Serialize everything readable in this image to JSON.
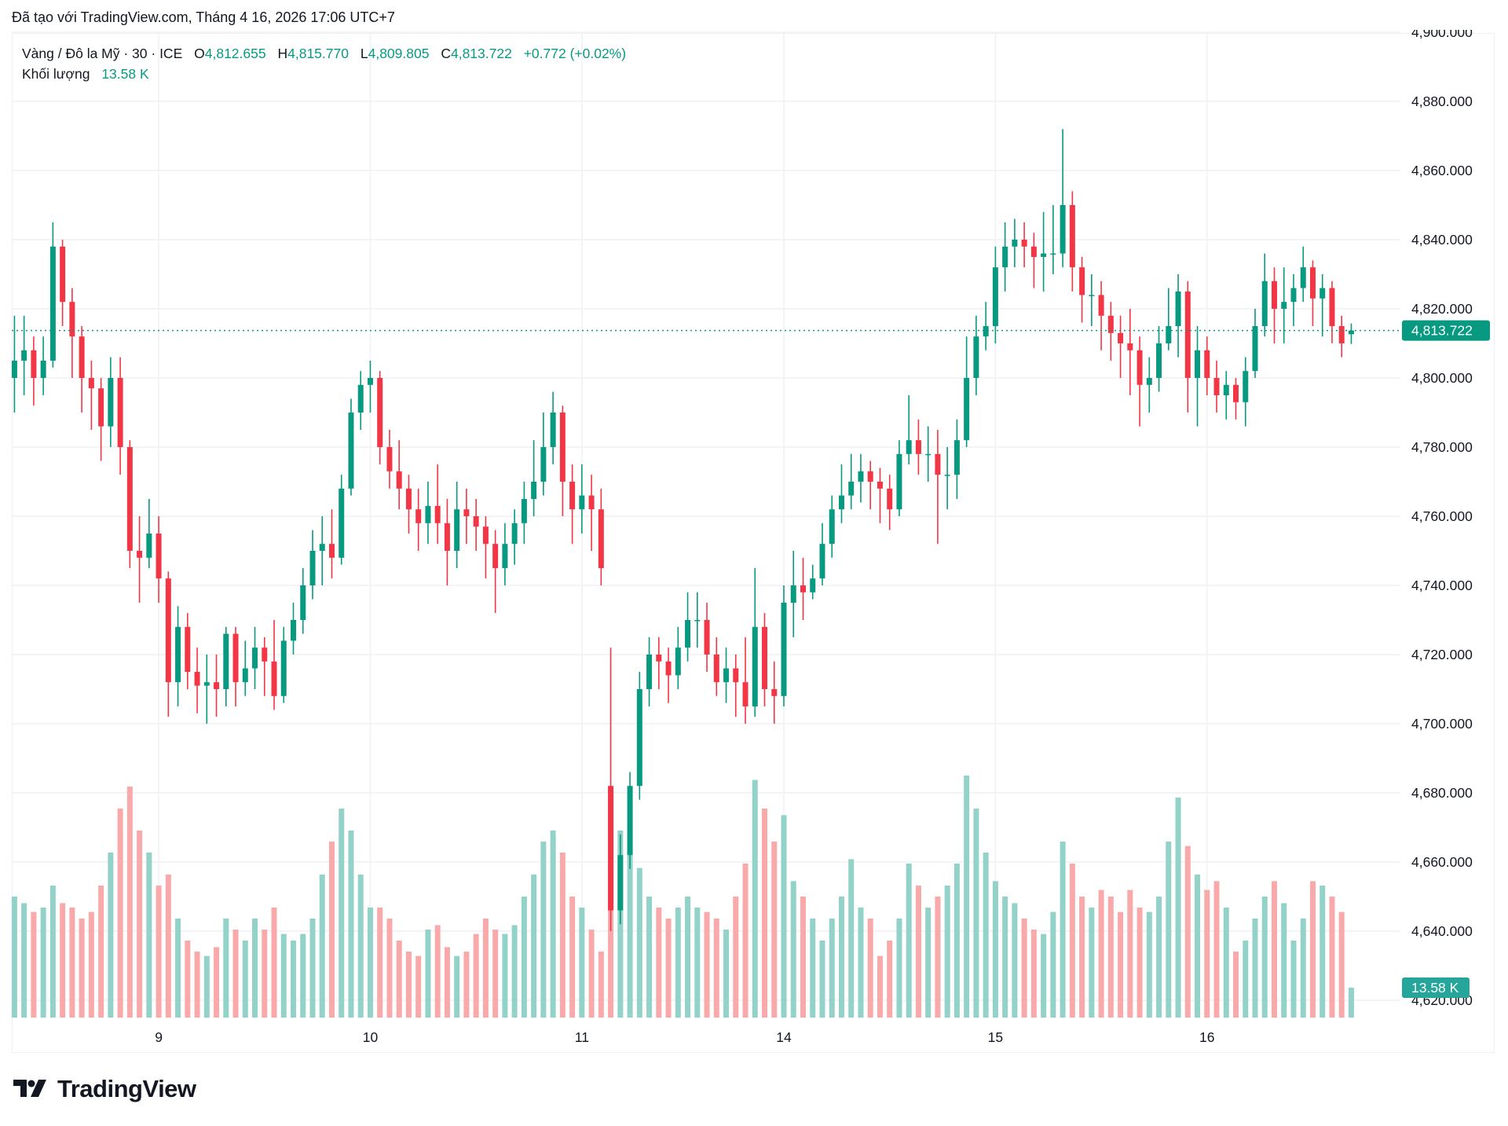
{
  "caption": "Đã tạo với TradingView.com, Tháng 4 16, 2026 17:06 UTC+7",
  "legend": {
    "symbol": "Vàng / Đô la Mỹ · 30 · ICE",
    "open_label": "O",
    "open": "4,812.655",
    "high_label": "H",
    "high": "4,815.770",
    "low_label": "L",
    "low": "4,809.805",
    "close_label": "C",
    "close": "4,813.722",
    "change": "+0.772 (+0.02%)",
    "volume_label": "Khối lượng",
    "volume": "13.58 K"
  },
  "colors": {
    "up": "#089981",
    "down": "#f23645",
    "up_volume": "#92d2c8",
    "down_volume": "#f9a9a9",
    "grid": "#f0f1f4"
  },
  "last_price_label": "4,813.722",
  "last_volume_label": "13.58 K",
  "logo_text": "TradingView",
  "chart_data": {
    "type": "candlestick",
    "title": "",
    "y_axis": {
      "min": 4620,
      "max": 4900,
      "step": 20,
      "tick_labels": [
        "4,900.000",
        "4,880.000",
        "4,860.000",
        "4,840.000",
        "4,820.000",
        "4,800.000",
        "4,780.000",
        "4,760.000",
        "4,740.000",
        "4,720.000",
        "4,700.000",
        "4,680.000",
        "4,660.000",
        "4,640.000",
        "4,620.000"
      ],
      "position": "right"
    },
    "x_tick_labels": [
      "9",
      "10",
      "11",
      "14",
      "15",
      "16"
    ],
    "grid": true,
    "last_price": 4813.722,
    "candles": [
      {
        "o": 4800,
        "h": 4818,
        "l": 4790,
        "c": 4805,
        "v": 55
      },
      {
        "o": 4805,
        "h": 4818,
        "l": 4795,
        "c": 4808,
        "v": 52
      },
      {
        "o": 4808,
        "h": 4812,
        "l": 4792,
        "c": 4800,
        "v": 48
      },
      {
        "o": 4800,
        "h": 4812,
        "l": 4795,
        "c": 4805,
        "v": 50
      },
      {
        "o": 4805,
        "h": 4845,
        "l": 4803,
        "c": 4838,
        "v": 60
      },
      {
        "o": 4838,
        "h": 4840,
        "l": 4815,
        "c": 4822,
        "v": 52
      },
      {
        "o": 4822,
        "h": 4826,
        "l": 4800,
        "c": 4812,
        "v": 50
      },
      {
        "o": 4812,
        "h": 4815,
        "l": 4790,
        "c": 4800,
        "v": 45
      },
      {
        "o": 4800,
        "h": 4805,
        "l": 4785,
        "c": 4797,
        "v": 48
      },
      {
        "o": 4797,
        "h": 4800,
        "l": 4776,
        "c": 4786,
        "v": 60
      },
      {
        "o": 4786,
        "h": 4806,
        "l": 4780,
        "c": 4800,
        "v": 75
      },
      {
        "o": 4800,
        "h": 4806,
        "l": 4772,
        "c": 4780,
        "v": 95
      },
      {
        "o": 4780,
        "h": 4782,
        "l": 4745,
        "c": 4750,
        "v": 105
      },
      {
        "o": 4750,
        "h": 4760,
        "l": 4735,
        "c": 4748,
        "v": 85
      },
      {
        "o": 4748,
        "h": 4765,
        "l": 4745,
        "c": 4755,
        "v": 75
      },
      {
        "o": 4755,
        "h": 4760,
        "l": 4735,
        "c": 4742,
        "v": 60,
        "t": "9"
      },
      {
        "o": 4742,
        "h": 4744,
        "l": 4702,
        "c": 4712,
        "v": 65
      },
      {
        "o": 4712,
        "h": 4734,
        "l": 4705,
        "c": 4728,
        "v": 45
      },
      {
        "o": 4728,
        "h": 4732,
        "l": 4710,
        "c": 4715,
        "v": 35
      },
      {
        "o": 4715,
        "h": 4722,
        "l": 4703,
        "c": 4711,
        "v": 30
      },
      {
        "o": 4711,
        "h": 4720,
        "l": 4700,
        "c": 4712,
        "v": 28
      },
      {
        "o": 4712,
        "h": 4720,
        "l": 4702,
        "c": 4710,
        "v": 32
      },
      {
        "o": 4710,
        "h": 4728,
        "l": 4705,
        "c": 4726,
        "v": 45
      },
      {
        "o": 4726,
        "h": 4728,
        "l": 4705,
        "c": 4712,
        "v": 40
      },
      {
        "o": 4712,
        "h": 4724,
        "l": 4708,
        "c": 4716,
        "v": 35
      },
      {
        "o": 4716,
        "h": 4728,
        "l": 4710,
        "c": 4722,
        "v": 45
      },
      {
        "o": 4722,
        "h": 4725,
        "l": 4708,
        "c": 4718,
        "v": 40
      },
      {
        "o": 4718,
        "h": 4730,
        "l": 4704,
        "c": 4708,
        "v": 50
      },
      {
        "o": 4708,
        "h": 4728,
        "l": 4706,
        "c": 4724,
        "v": 38
      },
      {
        "o": 4724,
        "h": 4735,
        "l": 4720,
        "c": 4730,
        "v": 35
      },
      {
        "o": 4730,
        "h": 4745,
        "l": 4726,
        "c": 4740,
        "v": 38
      },
      {
        "o": 4740,
        "h": 4756,
        "l": 4736,
        "c": 4750,
        "v": 45
      },
      {
        "o": 4750,
        "h": 4760,
        "l": 4740,
        "c": 4752,
        "v": 65
      },
      {
        "o": 4752,
        "h": 4762,
        "l": 4742,
        "c": 4748,
        "v": 80
      },
      {
        "o": 4748,
        "h": 4772,
        "l": 4746,
        "c": 4768,
        "v": 95
      },
      {
        "o": 4768,
        "h": 4794,
        "l": 4766,
        "c": 4790,
        "v": 85
      },
      {
        "o": 4790,
        "h": 4802,
        "l": 4785,
        "c": 4798,
        "v": 65
      },
      {
        "o": 4798,
        "h": 4805,
        "l": 4790,
        "c": 4800,
        "v": 50,
        "t": "10"
      },
      {
        "o": 4800,
        "h": 4802,
        "l": 4775,
        "c": 4780,
        "v": 50
      },
      {
        "o": 4780,
        "h": 4785,
        "l": 4768,
        "c": 4773,
        "v": 45
      },
      {
        "o": 4773,
        "h": 4782,
        "l": 4762,
        "c": 4768,
        "v": 35
      },
      {
        "o": 4768,
        "h": 4772,
        "l": 4755,
        "c": 4762,
        "v": 30
      },
      {
        "o": 4762,
        "h": 4768,
        "l": 4750,
        "c": 4758,
        "v": 28
      },
      {
        "o": 4758,
        "h": 4770,
        "l": 4752,
        "c": 4763,
        "v": 40
      },
      {
        "o": 4763,
        "h": 4775,
        "l": 4752,
        "c": 4758,
        "v": 42
      },
      {
        "o": 4758,
        "h": 4765,
        "l": 4740,
        "c": 4750,
        "v": 32
      },
      {
        "o": 4750,
        "h": 4770,
        "l": 4745,
        "c": 4762,
        "v": 28
      },
      {
        "o": 4762,
        "h": 4768,
        "l": 4752,
        "c": 4760,
        "v": 30
      },
      {
        "o": 4760,
        "h": 4765,
        "l": 4750,
        "c": 4757,
        "v": 38
      },
      {
        "o": 4757,
        "h": 4760,
        "l": 4742,
        "c": 4752,
        "v": 45
      },
      {
        "o": 4752,
        "h": 4756,
        "l": 4732,
        "c": 4745,
        "v": 40
      },
      {
        "o": 4745,
        "h": 4758,
        "l": 4740,
        "c": 4752,
        "v": 38
      },
      {
        "o": 4752,
        "h": 4762,
        "l": 4746,
        "c": 4758,
        "v": 42
      },
      {
        "o": 4758,
        "h": 4770,
        "l": 4752,
        "c": 4765,
        "v": 55
      },
      {
        "o": 4765,
        "h": 4782,
        "l": 4760,
        "c": 4770,
        "v": 65
      },
      {
        "o": 4770,
        "h": 4790,
        "l": 4766,
        "c": 4780,
        "v": 80
      },
      {
        "o": 4780,
        "h": 4796,
        "l": 4775,
        "c": 4790,
        "v": 85
      },
      {
        "o": 4790,
        "h": 4792,
        "l": 4760,
        "c": 4770,
        "v": 75
      },
      {
        "o": 4770,
        "h": 4775,
        "l": 4752,
        "c": 4762,
        "v": 55
      },
      {
        "o": 4762,
        "h": 4775,
        "l": 4755,
        "c": 4766,
        "v": 50,
        "t": "11"
      },
      {
        "o": 4766,
        "h": 4772,
        "l": 4750,
        "c": 4762,
        "v": 40
      },
      {
        "o": 4762,
        "h": 4768,
        "l": 4740,
        "c": 4745,
        "v": 30
      },
      {
        "o": 4682,
        "h": 4722,
        "l": 4640,
        "c": 4646,
        "v": 105
      },
      {
        "o": 4646,
        "h": 4668,
        "l": 4642,
        "c": 4662,
        "v": 85
      },
      {
        "o": 4662,
        "h": 4686,
        "l": 4658,
        "c": 4682,
        "v": 75
      },
      {
        "o": 4682,
        "h": 4715,
        "l": 4678,
        "c": 4710,
        "v": 68
      },
      {
        "o": 4710,
        "h": 4725,
        "l": 4705,
        "c": 4720,
        "v": 55
      },
      {
        "o": 4720,
        "h": 4725,
        "l": 4710,
        "c": 4718,
        "v": 50
      },
      {
        "o": 4718,
        "h": 4722,
        "l": 4706,
        "c": 4714,
        "v": 45
      },
      {
        "o": 4714,
        "h": 4728,
        "l": 4710,
        "c": 4722,
        "v": 50
      },
      {
        "o": 4722,
        "h": 4738,
        "l": 4718,
        "c": 4730,
        "v": 55
      },
      {
        "o": 4730,
        "h": 4738,
        "l": 4722,
        "c": 4730,
        "v": 50
      },
      {
        "o": 4730,
        "h": 4735,
        "l": 4715,
        "c": 4720,
        "v": 48
      },
      {
        "o": 4720,
        "h": 4725,
        "l": 4708,
        "c": 4712,
        "v": 45
      },
      {
        "o": 4712,
        "h": 4722,
        "l": 4706,
        "c": 4716,
        "v": 40
      },
      {
        "o": 4716,
        "h": 4720,
        "l": 4702,
        "c": 4712,
        "v": 55
      },
      {
        "o": 4712,
        "h": 4725,
        "l": 4700,
        "c": 4705,
        "v": 70
      },
      {
        "o": 4705,
        "h": 4745,
        "l": 4702,
        "c": 4728,
        "v": 108
      },
      {
        "o": 4728,
        "h": 4732,
        "l": 4705,
        "c": 4710,
        "v": 95
      },
      {
        "o": 4710,
        "h": 4718,
        "l": 4700,
        "c": 4708,
        "v": 80
      },
      {
        "o": 4708,
        "h": 4740,
        "l": 4705,
        "c": 4735,
        "v": 92,
        "t": "14"
      },
      {
        "o": 4735,
        "h": 4750,
        "l": 4725,
        "c": 4740,
        "v": 62
      },
      {
        "o": 4740,
        "h": 4748,
        "l": 4730,
        "c": 4738,
        "v": 55
      },
      {
        "o": 4738,
        "h": 4746,
        "l": 4736,
        "c": 4742,
        "v": 45
      },
      {
        "o": 4742,
        "h": 4758,
        "l": 4740,
        "c": 4752,
        "v": 35
      },
      {
        "o": 4752,
        "h": 4766,
        "l": 4748,
        "c": 4762,
        "v": 45
      },
      {
        "o": 4762,
        "h": 4775,
        "l": 4758,
        "c": 4766,
        "v": 55
      },
      {
        "o": 4766,
        "h": 4778,
        "l": 4762,
        "c": 4770,
        "v": 72
      },
      {
        "o": 4770,
        "h": 4778,
        "l": 4764,
        "c": 4773,
        "v": 50
      },
      {
        "o": 4773,
        "h": 4776,
        "l": 4762,
        "c": 4770,
        "v": 45
      },
      {
        "o": 4770,
        "h": 4774,
        "l": 4758,
        "c": 4768,
        "v": 28
      },
      {
        "o": 4768,
        "h": 4772,
        "l": 4756,
        "c": 4762,
        "v": 35
      },
      {
        "o": 4762,
        "h": 4782,
        "l": 4760,
        "c": 4778,
        "v": 45
      },
      {
        "o": 4778,
        "h": 4795,
        "l": 4775,
        "c": 4782,
        "v": 70
      },
      {
        "o": 4782,
        "h": 4788,
        "l": 4772,
        "c": 4778,
        "v": 60
      },
      {
        "o": 4778,
        "h": 4786,
        "l": 4770,
        "c": 4778,
        "v": 50
      },
      {
        "o": 4778,
        "h": 4785,
        "l": 4752,
        "c": 4772,
        "v": 55
      },
      {
        "o": 4772,
        "h": 4780,
        "l": 4762,
        "c": 4772,
        "v": 60
      },
      {
        "o": 4772,
        "h": 4788,
        "l": 4765,
        "c": 4782,
        "v": 70
      },
      {
        "o": 4782,
        "h": 4812,
        "l": 4780,
        "c": 4800,
        "v": 110
      },
      {
        "o": 4800,
        "h": 4818,
        "l": 4795,
        "c": 4812,
        "v": 95
      },
      {
        "o": 4812,
        "h": 4822,
        "l": 4808,
        "c": 4815,
        "v": 75
      },
      {
        "o": 4815,
        "h": 4838,
        "l": 4810,
        "c": 4832,
        "v": 62,
        "t": "15"
      },
      {
        "o": 4832,
        "h": 4845,
        "l": 4825,
        "c": 4838,
        "v": 55
      },
      {
        "o": 4838,
        "h": 4846,
        "l": 4832,
        "c": 4840,
        "v": 52
      },
      {
        "o": 4840,
        "h": 4845,
        "l": 4832,
        "c": 4838,
        "v": 45
      },
      {
        "o": 4838,
        "h": 4842,
        "l": 4826,
        "c": 4835,
        "v": 40
      },
      {
        "o": 4835,
        "h": 4848,
        "l": 4825,
        "c": 4836,
        "v": 38
      },
      {
        "o": 4836,
        "h": 4850,
        "l": 4830,
        "c": 4836,
        "v": 48
      },
      {
        "o": 4836,
        "h": 4872,
        "l": 4832,
        "c": 4850,
        "v": 80
      },
      {
        "o": 4850,
        "h": 4854,
        "l": 4825,
        "c": 4832,
        "v": 70
      },
      {
        "o": 4832,
        "h": 4835,
        "l": 4816,
        "c": 4824,
        "v": 55
      },
      {
        "o": 4824,
        "h": 4830,
        "l": 4815,
        "c": 4824,
        "v": 50
      },
      {
        "o": 4824,
        "h": 4828,
        "l": 4808,
        "c": 4818,
        "v": 58
      },
      {
        "o": 4818,
        "h": 4822,
        "l": 4805,
        "c": 4813,
        "v": 55
      },
      {
        "o": 4813,
        "h": 4818,
        "l": 4800,
        "c": 4810,
        "v": 48
      },
      {
        "o": 4810,
        "h": 4820,
        "l": 4795,
        "c": 4808,
        "v": 58
      },
      {
        "o": 4808,
        "h": 4812,
        "l": 4786,
        "c": 4798,
        "v": 50
      },
      {
        "o": 4798,
        "h": 4806,
        "l": 4790,
        "c": 4800,
        "v": 48
      },
      {
        "o": 4800,
        "h": 4815,
        "l": 4796,
        "c": 4810,
        "v": 55
      },
      {
        "o": 4810,
        "h": 4826,
        "l": 4808,
        "c": 4815,
        "v": 80
      },
      {
        "o": 4815,
        "h": 4830,
        "l": 4806,
        "c": 4825,
        "v": 100
      },
      {
        "o": 4825,
        "h": 4828,
        "l": 4790,
        "c": 4800,
        "v": 78
      },
      {
        "o": 4800,
        "h": 4815,
        "l": 4786,
        "c": 4808,
        "v": 65
      },
      {
        "o": 4808,
        "h": 4812,
        "l": 4795,
        "c": 4800,
        "v": 58,
        "t": "16"
      },
      {
        "o": 4800,
        "h": 4805,
        "l": 4790,
        "c": 4795,
        "v": 62
      },
      {
        "o": 4795,
        "h": 4802,
        "l": 4788,
        "c": 4798,
        "v": 50
      },
      {
        "o": 4798,
        "h": 4800,
        "l": 4788,
        "c": 4793,
        "v": 30
      },
      {
        "o": 4793,
        "h": 4806,
        "l": 4786,
        "c": 4802,
        "v": 35
      },
      {
        "o": 4802,
        "h": 4820,
        "l": 4800,
        "c": 4815,
        "v": 45
      },
      {
        "o": 4815,
        "h": 4836,
        "l": 4812,
        "c": 4828,
        "v": 55
      },
      {
        "o": 4828,
        "h": 4832,
        "l": 4810,
        "c": 4820,
        "v": 62
      },
      {
        "o": 4820,
        "h": 4832,
        "l": 4810,
        "c": 4822,
        "v": 52
      },
      {
        "o": 4822,
        "h": 4830,
        "l": 4815,
        "c": 4826,
        "v": 35
      },
      {
        "o": 4826,
        "h": 4838,
        "l": 4822,
        "c": 4832,
        "v": 45
      },
      {
        "o": 4832,
        "h": 4834,
        "l": 4815,
        "c": 4823,
        "v": 62
      },
      {
        "o": 4823,
        "h": 4830,
        "l": 4812,
        "c": 4826,
        "v": 60
      },
      {
        "o": 4826,
        "h": 4828,
        "l": 4810,
        "c": 4815,
        "v": 55
      },
      {
        "o": 4815,
        "h": 4818,
        "l": 4806,
        "c": 4810,
        "v": 48
      },
      {
        "o": 4812.655,
        "h": 4815.77,
        "l": 4809.805,
        "c": 4813.722,
        "v": 13.58
      }
    ]
  }
}
